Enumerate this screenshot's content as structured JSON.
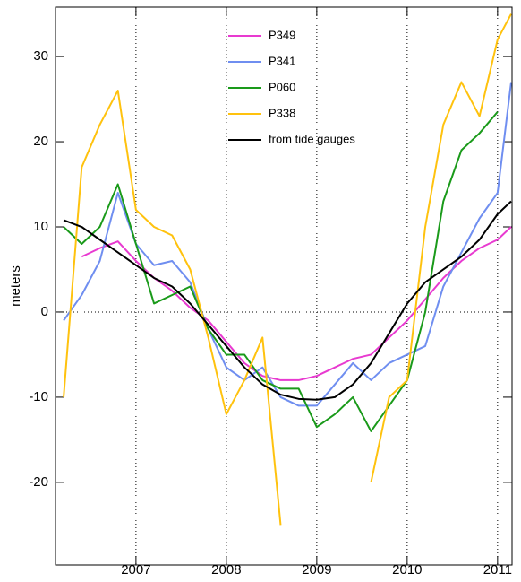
{
  "chart_data": {
    "type": "line",
    "ylabel": "meters",
    "x": [
      2006.2,
      2006.4,
      2006.6,
      2006.8,
      2007.0,
      2007.2,
      2007.4,
      2007.6,
      2007.8,
      2008.0,
      2008.2,
      2008.4,
      2008.6,
      2008.8,
      2009.0,
      2009.2,
      2009.4,
      2009.6,
      2009.8,
      2010.0,
      2010.2,
      2010.4,
      2010.6,
      2010.8,
      2011.0,
      2011.15
    ],
    "series": [
      {
        "name": "P349",
        "color": "#e83ad0",
        "values": [
          null,
          6.5,
          7.5,
          8.3,
          6,
          4,
          2.5,
          0.5,
          -1,
          -3.5,
          -6,
          -7.5,
          -8,
          -8,
          -7.5,
          -6.5,
          -5.5,
          -5,
          -3,
          -1,
          1.5,
          4,
          6,
          7.5,
          8.5,
          10
        ]
      },
      {
        "name": "P341",
        "color": "#6f8ef0",
        "values": [
          -1,
          2,
          6,
          14,
          8,
          5.5,
          6,
          3.5,
          -2,
          -6.5,
          -8,
          -6.5,
          -10,
          -11,
          -11,
          -8.5,
          -6,
          -8,
          -6,
          -5,
          -4,
          3,
          7,
          11,
          14,
          27
        ]
      },
      {
        "name": "P060",
        "color": "#1a9a1a",
        "values": [
          10,
          8,
          10,
          15,
          8,
          1,
          2,
          3,
          -2,
          -5,
          -5,
          -8,
          -9,
          -9,
          -13.5,
          -12,
          -10,
          -14,
          -11,
          -8,
          0,
          13,
          19,
          21,
          23.5,
          null
        ]
      },
      {
        "name": "P338",
        "color": "#ffc20e",
        "values": [
          -10,
          17,
          22,
          26,
          12,
          10,
          9,
          5,
          -3,
          -12,
          -8,
          -3,
          -25,
          null,
          null,
          null,
          null,
          -20,
          -10,
          -8,
          10,
          22,
          27,
          23,
          32,
          35
        ]
      },
      {
        "name": "from tide gauges",
        "color": "#000000",
        "values": [
          10.8,
          10,
          8.5,
          7,
          5.5,
          4,
          3,
          1,
          -1.5,
          -4,
          -6.5,
          -8.5,
          -9.7,
          -10.2,
          -10.3,
          -10,
          -8.5,
          -6,
          -2.5,
          1,
          3.5,
          5,
          6.5,
          8.5,
          11.5,
          13
        ]
      }
    ],
    "xlim": [
      2006.11,
      2011.16
    ],
    "xticks": [
      2007,
      2008,
      2009,
      2010,
      2011
    ],
    "ylim": [
      -29.7,
      35.8
    ],
    "yticks": [
      -20,
      -10,
      0,
      10,
      20,
      30
    ],
    "xgrid": true,
    "hlines": [
      0
    ],
    "legend": "upper center"
  }
}
